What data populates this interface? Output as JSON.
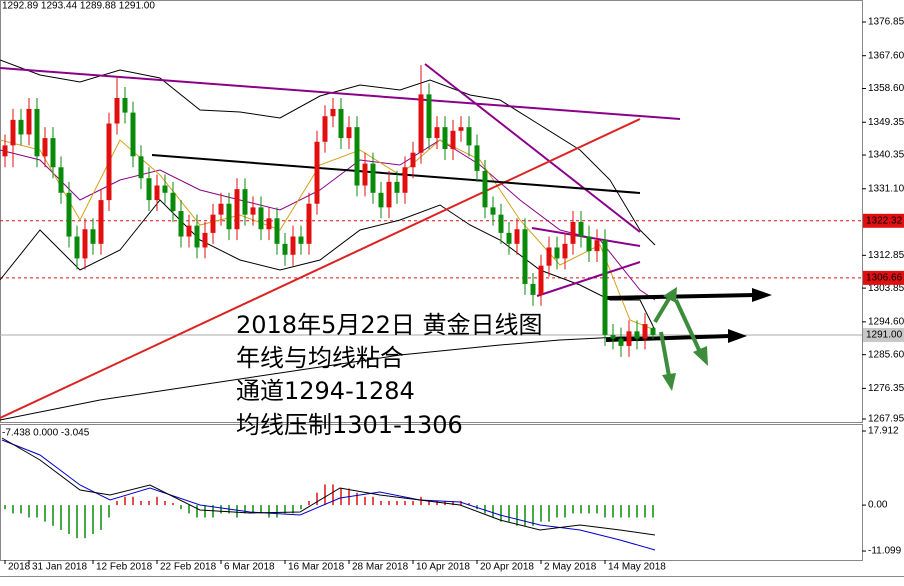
{
  "chart_data": {
    "type": "candlestick",
    "ohlc_label": "1292.89 1293.44 1289.88 1291.00",
    "open": [
      1340,
      1343,
      1350,
      1346,
      1353,
      1340,
      1345,
      1337,
      1330,
      1318,
      1312,
      1320,
      1316,
      1328,
      1349,
      1356,
      1352,
      1340,
      1334,
      1328,
      1332,
      1330,
      1325,
      1318,
      1321,
      1315,
      1319,
      1324,
      1327,
      1320,
      1331,
      1324,
      1326,
      1320,
      1323,
      1316,
      1313,
      1318,
      1316,
      1327,
      1344,
      1351,
      1353,
      1345,
      1348,
      1332,
      1338,
      1330,
      1326,
      1333,
      1330,
      1337,
      1341,
      1357,
      1345,
      1348,
      1342,
      1347,
      1348,
      1343,
      1336,
      1326,
      1324,
      1319,
      1316,
      1320,
      1305,
      1302,
      1310,
      1315,
      1312,
      1316,
      1322,
      1318,
      1314,
      1317,
      1291,
      1290,
      1288,
      1292,
      1290,
      1292.89
    ],
    "high": [
      1346,
      1353,
      1353,
      1356,
      1356,
      1348,
      1348,
      1340,
      1333,
      1321,
      1323,
      1323,
      1331,
      1352,
      1362,
      1359,
      1355,
      1343,
      1337,
      1335,
      1335,
      1333,
      1328,
      1324,
      1324,
      1322,
      1327,
      1330,
      1330,
      1334,
      1334,
      1329,
      1329,
      1326,
      1326,
      1319,
      1321,
      1321,
      1330,
      1347,
      1354,
      1356,
      1356,
      1351,
      1351,
      1341,
      1341,
      1333,
      1336,
      1336,
      1340,
      1344,
      1365,
      1360,
      1351,
      1351,
      1350,
      1351,
      1351,
      1346,
      1339,
      1329,
      1327,
      1322,
      1323,
      1323,
      1308,
      1313,
      1318,
      1318,
      1319,
      1325,
      1325,
      1321,
      1320,
      1320,
      1294,
      1293,
      1295,
      1295,
      1297,
      1293.44
    ],
    "low": [
      1337,
      1337,
      1343,
      1343,
      1337,
      1337,
      1334,
      1327,
      1315,
      1309,
      1309,
      1313,
      1313,
      1325,
      1346,
      1349,
      1337,
      1331,
      1325,
      1325,
      1327,
      1322,
      1315,
      1315,
      1312,
      1312,
      1316,
      1321,
      1317,
      1317,
      1321,
      1321,
      1317,
      1317,
      1313,
      1310,
      1310,
      1313,
      1313,
      1324,
      1341,
      1348,
      1342,
      1342,
      1329,
      1329,
      1327,
      1323,
      1323,
      1327,
      1327,
      1334,
      1338,
      1342,
      1342,
      1339,
      1339,
      1344,
      1340,
      1333,
      1323,
      1321,
      1316,
      1313,
      1313,
      1302,
      1299,
      1299,
      1307,
      1309,
      1309,
      1313,
      1315,
      1311,
      1311,
      1288,
      1287,
      1285,
      1285,
      1287,
      1287,
      1289.88
    ],
    "close": [
      1343,
      1350,
      1346,
      1353,
      1340,
      1345,
      1337,
      1330,
      1318,
      1312,
      1320,
      1316,
      1328,
      1349,
      1356,
      1352,
      1340,
      1334,
      1328,
      1332,
      1330,
      1325,
      1318,
      1321,
      1315,
      1319,
      1324,
      1327,
      1320,
      1331,
      1324,
      1326,
      1320,
      1323,
      1316,
      1313,
      1318,
      1316,
      1327,
      1344,
      1351,
      1353,
      1345,
      1348,
      1332,
      1338,
      1330,
      1326,
      1333,
      1330,
      1337,
      1341,
      1357,
      1345,
      1348,
      1342,
      1347,
      1348,
      1343,
      1336,
      1326,
      1324,
      1319,
      1316,
      1320,
      1305,
      1302,
      1310,
      1315,
      1312,
      1316,
      1322,
      1318,
      1314,
      1317,
      1291,
      1290,
      1288,
      1292,
      1290,
      1294,
      1291
    ],
    "up_color": "#e01010",
    "down_color": "#0a8a0a",
    "ylim": [
      1267.13,
      1382.88
    ],
    "yticks": [
      1376.85,
      {
        "value": 1367.6,
        "label": "1367.60"
      },
      {
        "value": 1358.6,
        "label": "1358.60"
      },
      1349.35,
      1340.35,
      {
        "value": 1331.1,
        "label": "1331.10"
      },
      1312.85,
      1303.85,
      {
        "value": 1294.6,
        "label": "1294.60"
      },
      {
        "value": 1285.6,
        "label": "1285.60"
      },
      1276.35,
      1267.95
    ],
    "price_lines": [
      {
        "value": 1322.32,
        "color": "#e01010"
      },
      {
        "value": 1306.66,
        "color": "#e01010"
      },
      {
        "value": 1291,
        "label": "1291.00",
        "color": "#c8c8c8"
      }
    ],
    "xticks": [
      {
        "value": 0,
        "label": "2018"
      },
      {
        "value": 3,
        "label": "31 Jan 2018"
      },
      {
        "value": 11,
        "label": "12 Feb 2018"
      },
      {
        "value": 19,
        "label": "22 Feb 2018"
      },
      {
        "value": 27,
        "label": "6 Mar 2018"
      },
      {
        "value": 35,
        "label": "16 Mar 2018"
      },
      {
        "value": 43,
        "label": "28 Mar 2018"
      },
      {
        "value": 51,
        "label": "10 Apr 2018"
      },
      {
        "value": 59,
        "label": "20 Apr 2018"
      },
      {
        "value": 67,
        "label": "2 May 2018"
      },
      {
        "value": 75,
        "label": "14 May 2018"
      }
    ],
    "annotations": [
      "2018年5月22日 黄金日线图",
      "年线与均线粘合",
      "通道1294-1284",
      "均线压制1301-1306"
    ],
    "indicator": {
      "label": "-7.438 0.000 -3.045",
      "ylim": [
        -13.27,
        19.36
      ],
      "yticks": [
        17.912,
        {
          "value": 0,
          "label": "0.00"
        },
        -11.099
      ],
      "histogram": [
        -1,
        -2,
        -2,
        -3,
        -3,
        -4,
        -5,
        -6,
        -7,
        -8,
        -8,
        -7,
        -6,
        -3,
        1,
        2,
        2,
        1,
        1,
        2,
        1,
        0.5,
        -1,
        -2,
        -3,
        -3,
        -3,
        -2,
        -2,
        -3,
        -2,
        -2,
        -2,
        -3,
        -3,
        -2,
        -2,
        -1,
        1,
        3,
        5,
        5,
        4,
        4,
        3,
        2,
        2,
        1,
        1,
        1,
        1,
        1,
        2,
        1,
        1,
        1,
        1,
        1,
        0.5,
        -1,
        -2,
        -3,
        -4,
        -4,
        -5,
        -5,
        -5,
        -4,
        -4,
        -3,
        -3,
        -2,
        -2,
        -2,
        -2,
        -3,
        -3,
        -3,
        -3,
        -3,
        -3,
        -3
      ]
    }
  }
}
